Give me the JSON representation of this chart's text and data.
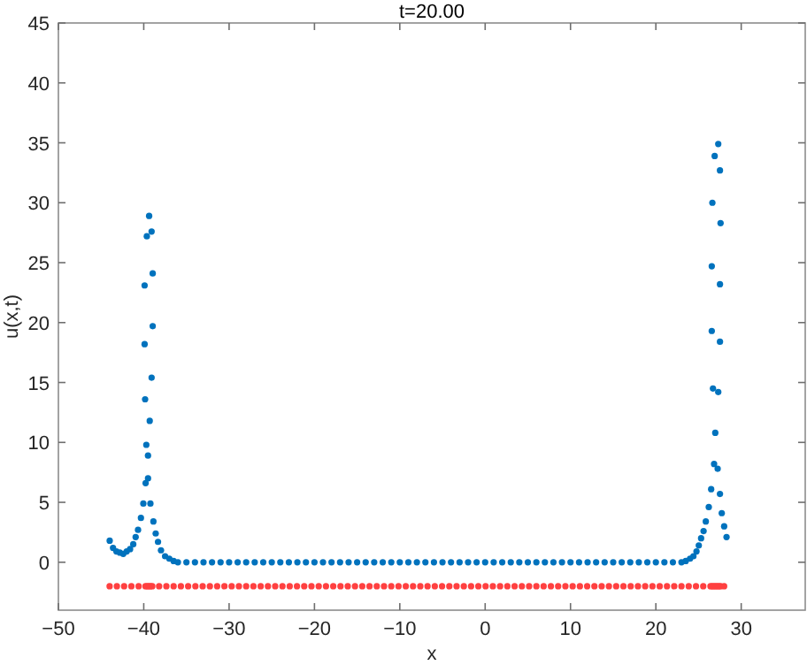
{
  "chart_data": {
    "type": "scatter",
    "title": "t=20.00",
    "xlabel": "x",
    "ylabel": "u(x,t)",
    "xlim": [
      -50,
      37.5
    ],
    "xticks": [
      -50,
      -40,
      -30,
      -20,
      -10,
      0,
      10,
      20,
      30
    ],
    "ylim": [
      -4,
      45
    ],
    "yticks": [
      0,
      5,
      10,
      15,
      20,
      25,
      30,
      35,
      40,
      45
    ],
    "grid": false,
    "marker": "circle",
    "series": [
      {
        "color": "#0072bd",
        "x": [
          -43.99,
          -43.6,
          -43.2,
          -42.8,
          -42.4,
          -42,
          -41.6,
          -41.23,
          -40.95,
          -40.67,
          -40.33,
          -40.05,
          -39.9,
          -39.9,
          -39.84,
          -39.78,
          -39.7,
          -39.64,
          -39.5,
          -39.5,
          -39.37,
          -39.3,
          -39.22,
          -39.08,
          -39.08,
          -38.95,
          -38.95,
          -38.87,
          -38.6,
          -38.33,
          -37.98,
          -37.5,
          -37,
          -36.5,
          -36,
          -35,
          -34,
          -33,
          -32,
          -31,
          -30,
          -29,
          -28,
          -27,
          -26,
          -25,
          -24,
          -23,
          -22,
          -21,
          -20,
          -19,
          -18,
          -17,
          -16,
          -15,
          -14,
          -13,
          -12,
          -11,
          -10,
          -9,
          -8,
          -7,
          -6,
          -5,
          -4,
          -3,
          -2,
          -1,
          0,
          1,
          2,
          3,
          4,
          5,
          6,
          7,
          8,
          9,
          10,
          11,
          12,
          13,
          14,
          15,
          16,
          17,
          18,
          19,
          20,
          21,
          22,
          23,
          23.5,
          24,
          24.4,
          24.76,
          25.03,
          25.3,
          25.59,
          25.85,
          26.2,
          26.48,
          26.55,
          26.55,
          26.62,
          26.69,
          26.82,
          26.89,
          26.96,
          27.24,
          27.31,
          27.31,
          27.51,
          27.51,
          27.51,
          27.51,
          27.58,
          27.72,
          28,
          28.28
        ],
        "values": [
          1.8,
          1.2,
          0.9,
          0.8,
          0.7,
          0.9,
          1.1,
          1.5,
          2.1,
          2.7,
          3.7,
          4.9,
          18.2,
          23.1,
          13.6,
          6.6,
          9.8,
          27.2,
          8.9,
          7,
          28.9,
          11.8,
          4.9,
          27.6,
          15.4,
          24.1,
          19.7,
          3.4,
          2.4,
          1.7,
          1,
          0.5,
          0.3,
          0.1,
          0,
          0,
          0,
          0,
          0,
          0,
          0,
          0,
          0,
          0,
          0,
          0,
          0,
          0,
          0,
          0,
          0,
          0,
          0,
          0,
          0,
          0,
          0,
          0,
          0,
          0,
          0,
          0,
          0,
          0,
          0,
          0,
          0,
          0,
          0,
          0,
          0,
          0,
          0,
          0,
          0,
          0,
          0,
          0,
          0,
          0,
          0,
          0,
          0,
          0,
          0,
          0,
          0,
          0,
          0,
          0,
          0,
          0,
          0,
          0,
          0.1,
          0.3,
          0.5,
          0.9,
          1.4,
          2,
          2.6,
          3.4,
          4.6,
          6.1,
          19.3,
          24.7,
          30,
          14.5,
          8.2,
          33.9,
          10.8,
          7.8,
          34.9,
          14.2,
          32.7,
          23.2,
          18.4,
          5.7,
          28.3,
          4.1,
          3,
          2.1
        ]
      },
      {
        "color": "#ff4040",
        "x": [
          -44,
          -43.15,
          -42.3,
          -41.45,
          -40.6,
          -39.8,
          -39.6,
          -39.4,
          -39.2,
          -39,
          -38.2,
          -37.35,
          -36.5,
          -35.65,
          -34.8,
          -33.95,
          -33.1,
          -32.25,
          -31.4,
          -30.55,
          -29.7,
          -28.85,
          -28,
          -27.15,
          -26.3,
          -25.45,
          -24.6,
          -23.75,
          -22.9,
          -22.05,
          -21.2,
          -20.35,
          -19.5,
          -18.65,
          -17.8,
          -16.95,
          -16.1,
          -15.25,
          -14.4,
          -13.55,
          -12.7,
          -11.85,
          -11,
          -10.15,
          -9.3,
          -8.45,
          -7.6,
          -6.75,
          -5.9,
          -5.05,
          -4.2,
          -3.35,
          -2.5,
          -1.65,
          -0.8,
          0.05,
          0.9,
          1.75,
          2.6,
          3.45,
          4.3,
          5.15,
          6,
          6.85,
          7.7,
          8.55,
          9.4,
          10.25,
          11.1,
          11.95,
          12.8,
          13.65,
          14.5,
          15.35,
          16.2,
          17.05,
          17.9,
          18.75,
          19.6,
          20.45,
          21.3,
          22.15,
          23,
          23.85,
          24.7,
          25.55,
          26.4,
          26.6,
          26.8,
          27,
          27.2,
          27.4,
          27.6,
          28
        ],
        "values": [
          -2,
          -2,
          -2,
          -2,
          -2,
          -2,
          -2,
          -2,
          -2,
          -2,
          -2,
          -2,
          -2,
          -2,
          -2,
          -2,
          -2,
          -2,
          -2,
          -2,
          -2,
          -2,
          -2,
          -2,
          -2,
          -2,
          -2,
          -2,
          -2,
          -2,
          -2,
          -2,
          -2,
          -2,
          -2,
          -2,
          -2,
          -2,
          -2,
          -2,
          -2,
          -2,
          -2,
          -2,
          -2,
          -2,
          -2,
          -2,
          -2,
          -2,
          -2,
          -2,
          -2,
          -2,
          -2,
          -2,
          -2,
          -2,
          -2,
          -2,
          -2,
          -2,
          -2,
          -2,
          -2,
          -2,
          -2,
          -2,
          -2,
          -2,
          -2,
          -2,
          -2,
          -2,
          -2,
          -2,
          -2,
          -2,
          -2,
          -2,
          -2,
          -2,
          -2,
          -2,
          -2,
          -2,
          -2,
          -2,
          -2,
          -2,
          -2,
          -2,
          -2,
          -2
        ]
      }
    ]
  }
}
